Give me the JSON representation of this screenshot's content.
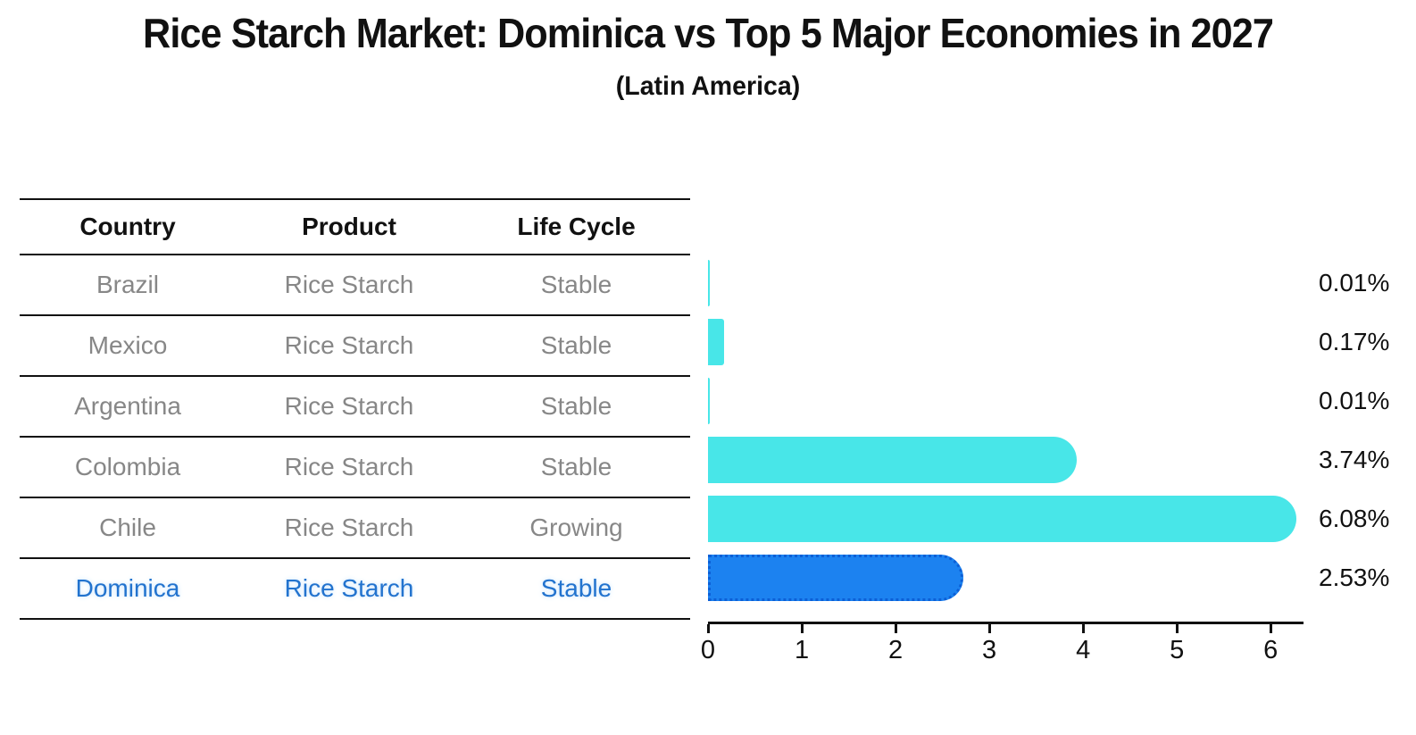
{
  "header": {
    "title": "Rice Starch Market: Dominica vs Top 5 Major Economies in 2027",
    "subtitle": "(Latin America)"
  },
  "table": {
    "columns": [
      "Country",
      "Product",
      "Life Cycle"
    ],
    "rows": [
      {
        "country": "Brazil",
        "product": "Rice Starch",
        "life_cycle": "Stable"
      },
      {
        "country": "Mexico",
        "product": "Rice Starch",
        "life_cycle": "Stable"
      },
      {
        "country": "Argentina",
        "product": "Rice Starch",
        "life_cycle": "Stable"
      },
      {
        "country": "Colombia",
        "product": "Rice Starch",
        "life_cycle": "Stable"
      },
      {
        "country": "Chile",
        "product": "Rice Starch",
        "life_cycle": "Growing"
      },
      {
        "country": "Dominica",
        "product": "Rice Starch",
        "life_cycle": "Stable"
      }
    ]
  },
  "chart_data": {
    "type": "bar",
    "orientation": "horizontal",
    "title": "Rice Starch Market: Dominica vs Top 5 Major Economies in 2027",
    "subtitle": "(Latin America)",
    "categories": [
      "Brazil",
      "Mexico",
      "Argentina",
      "Colombia",
      "Chile",
      "Dominica"
    ],
    "values": [
      0.01,
      0.17,
      0.01,
      3.74,
      6.08,
      2.53
    ],
    "value_labels": [
      "0.01%",
      "0.17%",
      "0.01%",
      "3.74%",
      "6.08%",
      "2.53%"
    ],
    "x_ticks": [
      0,
      1,
      2,
      3,
      4,
      5,
      6
    ],
    "xlim": [
      0,
      6.35
    ],
    "grid": false,
    "legend": false,
    "highlight_index": 5,
    "colors": {
      "bar": "#48e6e8",
      "highlight_bar": "#1c82f0",
      "highlight_border": "#0c5fd6",
      "highlight_text": "#2273ce",
      "row_text": "#878787",
      "axis_text": "#111111"
    }
  }
}
